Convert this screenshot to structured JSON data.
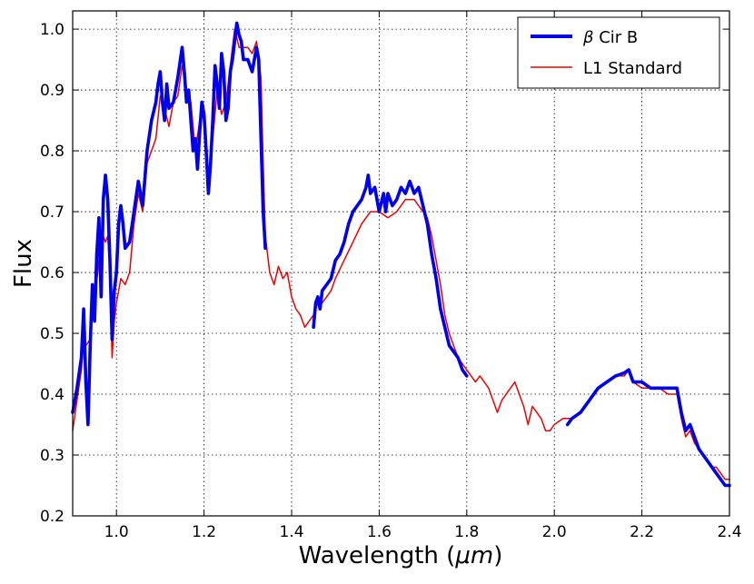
{
  "chart_data": {
    "type": "line",
    "xlabel_text": "Wavelength (",
    "xlabel_symbol": "μm",
    "xlabel_close": ")",
    "ylabel": "Flux",
    "xlim": [
      0.9,
      2.4
    ],
    "ylim": [
      0.2,
      1.03
    ],
    "grid": true,
    "legend_position": "top-right",
    "x_ticks": [
      "1.0",
      "1.2",
      "1.4",
      "1.6",
      "1.8",
      "2.0",
      "2.2",
      "2.4"
    ],
    "y_ticks": [
      "0.2",
      "0.3",
      "0.4",
      "0.5",
      "0.6",
      "0.7",
      "0.8",
      "0.9",
      "1.0"
    ],
    "series": [
      {
        "name_symbol": "β",
        "name_text": "Cir B",
        "color": "#0000ee",
        "linewidth": "thick",
        "segments": [
          [
            [
              0.9,
              0.37
            ],
            [
              0.91,
              0.41
            ],
            [
              0.92,
              0.46
            ],
            [
              0.925,
              0.54
            ],
            [
              0.93,
              0.42
            ],
            [
              0.935,
              0.35
            ],
            [
              0.94,
              0.48
            ],
            [
              0.945,
              0.58
            ],
            [
              0.95,
              0.52
            ],
            [
              0.955,
              0.63
            ],
            [
              0.96,
              0.69
            ],
            [
              0.965,
              0.56
            ],
            [
              0.97,
              0.72
            ],
            [
              0.975,
              0.76
            ],
            [
              0.98,
              0.72
            ],
            [
              0.985,
              0.62
            ],
            [
              0.99,
              0.49
            ],
            [
              0.995,
              0.57
            ],
            [
              1.0,
              0.6
            ],
            [
              1.005,
              0.68
            ],
            [
              1.01,
              0.71
            ],
            [
              1.015,
              0.68
            ],
            [
              1.02,
              0.64
            ],
            [
              1.03,
              0.65
            ],
            [
              1.04,
              0.7
            ],
            [
              1.05,
              0.75
            ],
            [
              1.06,
              0.71
            ],
            [
              1.07,
              0.8
            ],
            [
              1.08,
              0.85
            ],
            [
              1.09,
              0.88
            ],
            [
              1.095,
              0.91
            ],
            [
              1.1,
              0.93
            ],
            [
              1.105,
              0.88
            ],
            [
              1.11,
              0.85
            ],
            [
              1.115,
              0.91
            ],
            [
              1.12,
              0.87
            ],
            [
              1.13,
              0.88
            ],
            [
              1.14,
              0.92
            ],
            [
              1.15,
              0.97
            ],
            [
              1.155,
              0.93
            ],
            [
              1.16,
              0.88
            ],
            [
              1.165,
              0.9
            ],
            [
              1.17,
              0.85
            ],
            [
              1.175,
              0.8
            ],
            [
              1.18,
              0.82
            ],
            [
              1.185,
              0.77
            ],
            [
              1.19,
              0.83
            ],
            [
              1.195,
              0.88
            ],
            [
              1.2,
              0.86
            ],
            [
              1.205,
              0.8
            ],
            [
              1.21,
              0.73
            ],
            [
              1.215,
              0.78
            ],
            [
              1.22,
              0.85
            ],
            [
              1.225,
              0.94
            ],
            [
              1.23,
              0.91
            ],
            [
              1.235,
              0.87
            ],
            [
              1.24,
              0.96
            ],
            [
              1.245,
              0.93
            ],
            [
              1.25,
              0.85
            ],
            [
              1.255,
              0.87
            ],
            [
              1.26,
              0.93
            ],
            [
              1.265,
              0.95
            ],
            [
              1.27,
              0.98
            ],
            [
              1.275,
              1.01
            ],
            [
              1.28,
              0.99
            ],
            [
              1.285,
              0.98
            ],
            [
              1.29,
              0.95
            ],
            [
              1.3,
              0.95
            ],
            [
              1.31,
              0.93
            ],
            [
              1.32,
              0.97
            ],
            [
              1.325,
              0.95
            ],
            [
              1.33,
              0.82
            ],
            [
              1.335,
              0.7
            ],
            [
              1.34,
              0.64
            ]
          ],
          [
            [
              1.45,
              0.51
            ],
            [
              1.455,
              0.55
            ],
            [
              1.46,
              0.56
            ],
            [
              1.465,
              0.54
            ],
            [
              1.47,
              0.57
            ],
            [
              1.48,
              0.58
            ],
            [
              1.49,
              0.59
            ],
            [
              1.5,
              0.62
            ],
            [
              1.51,
              0.63
            ],
            [
              1.52,
              0.65
            ],
            [
              1.53,
              0.68
            ],
            [
              1.54,
              0.7
            ],
            [
              1.55,
              0.71
            ],
            [
              1.56,
              0.72
            ],
            [
              1.57,
              0.74
            ],
            [
              1.575,
              0.76
            ],
            [
              1.58,
              0.73
            ],
            [
              1.59,
              0.74
            ],
            [
              1.6,
              0.7
            ],
            [
              1.61,
              0.73
            ],
            [
              1.615,
              0.7
            ],
            [
              1.62,
              0.73
            ],
            [
              1.63,
              0.71
            ],
            [
              1.64,
              0.72
            ],
            [
              1.65,
              0.74
            ],
            [
              1.66,
              0.73
            ],
            [
              1.67,
              0.75
            ],
            [
              1.68,
              0.73
            ],
            [
              1.69,
              0.74
            ],
            [
              1.7,
              0.71
            ],
            [
              1.71,
              0.68
            ],
            [
              1.72,
              0.63
            ],
            [
              1.73,
              0.59
            ],
            [
              1.74,
              0.54
            ],
            [
              1.75,
              0.51
            ],
            [
              1.76,
              0.48
            ],
            [
              1.77,
              0.47
            ],
            [
              1.78,
              0.46
            ],
            [
              1.79,
              0.44
            ],
            [
              1.8,
              0.43
            ]
          ],
          [
            [
              2.03,
              0.35
            ],
            [
              2.04,
              0.36
            ],
            [
              2.06,
              0.37
            ],
            [
              2.08,
              0.39
            ],
            [
              2.1,
              0.41
            ],
            [
              2.12,
              0.42
            ],
            [
              2.14,
              0.43
            ],
            [
              2.16,
              0.435
            ],
            [
              2.17,
              0.44
            ],
            [
              2.18,
              0.42
            ],
            [
              2.2,
              0.42
            ],
            [
              2.22,
              0.41
            ],
            [
              2.24,
              0.41
            ],
            [
              2.26,
              0.41
            ],
            [
              2.27,
              0.41
            ],
            [
              2.28,
              0.41
            ],
            [
              2.29,
              0.37
            ],
            [
              2.3,
              0.34
            ],
            [
              2.31,
              0.35
            ],
            [
              2.32,
              0.33
            ],
            [
              2.33,
              0.31
            ],
            [
              2.34,
              0.3
            ],
            [
              2.35,
              0.29
            ],
            [
              2.36,
              0.28
            ],
            [
              2.37,
              0.27
            ],
            [
              2.38,
              0.26
            ],
            [
              2.39,
              0.25
            ],
            [
              2.4,
              0.25
            ]
          ]
        ]
      },
      {
        "name": "L1 Standard",
        "color": "#ee0000",
        "linewidth": "thin",
        "segments": [
          [
            [
              0.9,
              0.34
            ],
            [
              0.91,
              0.39
            ],
            [
              0.92,
              0.44
            ],
            [
              0.925,
              0.49
            ],
            [
              0.93,
              0.48
            ],
            [
              0.94,
              0.49
            ],
            [
              0.945,
              0.57
            ],
            [
              0.95,
              0.55
            ],
            [
              0.96,
              0.62
            ],
            [
              0.965,
              0.64
            ],
            [
              0.97,
              0.66
            ],
            [
              0.975,
              0.65
            ],
            [
              0.98,
              0.66
            ],
            [
              0.985,
              0.6
            ],
            [
              0.99,
              0.46
            ],
            [
              0.995,
              0.52
            ],
            [
              1.0,
              0.55
            ],
            [
              1.01,
              0.59
            ],
            [
              1.02,
              0.58
            ],
            [
              1.03,
              0.6
            ],
            [
              1.04,
              0.68
            ],
            [
              1.05,
              0.73
            ],
            [
              1.06,
              0.7
            ],
            [
              1.07,
              0.78
            ],
            [
              1.08,
              0.8
            ],
            [
              1.09,
              0.82
            ],
            [
              1.1,
              0.89
            ],
            [
              1.11,
              0.87
            ],
            [
              1.12,
              0.84
            ],
            [
              1.13,
              0.88
            ],
            [
              1.14,
              0.89
            ],
            [
              1.15,
              0.94
            ],
            [
              1.16,
              0.9
            ],
            [
              1.17,
              0.88
            ],
            [
              1.18,
              0.8
            ],
            [
              1.19,
              0.85
            ],
            [
              1.2,
              0.86
            ],
            [
              1.21,
              0.76
            ],
            [
              1.22,
              0.82
            ],
            [
              1.23,
              0.9
            ],
            [
              1.24,
              0.86
            ],
            [
              1.25,
              0.88
            ],
            [
              1.26,
              0.94
            ],
            [
              1.27,
              1.0
            ],
            [
              1.28,
              0.97
            ],
            [
              1.29,
              0.97
            ],
            [
              1.3,
              0.97
            ],
            [
              1.31,
              0.96
            ],
            [
              1.32,
              0.98
            ],
            [
              1.33,
              0.92
            ],
            [
              1.335,
              0.78
            ],
            [
              1.34,
              0.66
            ],
            [
              1.35,
              0.6
            ],
            [
              1.36,
              0.58
            ],
            [
              1.37,
              0.61
            ],
            [
              1.38,
              0.59
            ],
            [
              1.39,
              0.6
            ],
            [
              1.4,
              0.56
            ],
            [
              1.41,
              0.54
            ],
            [
              1.42,
              0.53
            ],
            [
              1.43,
              0.51
            ],
            [
              1.44,
              0.52
            ],
            [
              1.45,
              0.53
            ],
            [
              1.46,
              0.55
            ],
            [
              1.47,
              0.55
            ],
            [
              1.48,
              0.56
            ],
            [
              1.49,
              0.57
            ],
            [
              1.5,
              0.59
            ],
            [
              1.52,
              0.62
            ],
            [
              1.54,
              0.65
            ],
            [
              1.56,
              0.68
            ],
            [
              1.58,
              0.7
            ],
            [
              1.6,
              0.7
            ],
            [
              1.62,
              0.69
            ],
            [
              1.64,
              0.7
            ],
            [
              1.66,
              0.72
            ],
            [
              1.68,
              0.72
            ],
            [
              1.7,
              0.7
            ],
            [
              1.71,
              0.69
            ],
            [
              1.72,
              0.66
            ],
            [
              1.73,
              0.62
            ],
            [
              1.74,
              0.58
            ],
            [
              1.75,
              0.53
            ],
            [
              1.76,
              0.5
            ],
            [
              1.77,
              0.48
            ],
            [
              1.78,
              0.46
            ],
            [
              1.79,
              0.45
            ],
            [
              1.8,
              0.44
            ],
            [
              1.81,
              0.43
            ],
            [
              1.82,
              0.42
            ],
            [
              1.83,
              0.43
            ],
            [
              1.84,
              0.42
            ],
            [
              1.85,
              0.41
            ],
            [
              1.86,
              0.39
            ],
            [
              1.87,
              0.37
            ],
            [
              1.88,
              0.39
            ],
            [
              1.89,
              0.4
            ],
            [
              1.9,
              0.41
            ],
            [
              1.91,
              0.42
            ],
            [
              1.92,
              0.4
            ],
            [
              1.93,
              0.38
            ],
            [
              1.94,
              0.35
            ],
            [
              1.95,
              0.38
            ],
            [
              1.96,
              0.37
            ],
            [
              1.97,
              0.36
            ],
            [
              1.98,
              0.34
            ],
            [
              1.99,
              0.34
            ],
            [
              2.0,
              0.35
            ],
            [
              2.02,
              0.36
            ],
            [
              2.04,
              0.36
            ],
            [
              2.06,
              0.37
            ],
            [
              2.08,
              0.39
            ],
            [
              2.1,
              0.41
            ],
            [
              2.12,
              0.42
            ],
            [
              2.14,
              0.43
            ],
            [
              2.16,
              0.43
            ],
            [
              2.17,
              0.44
            ],
            [
              2.18,
              0.42
            ],
            [
              2.2,
              0.41
            ],
            [
              2.22,
              0.41
            ],
            [
              2.24,
              0.41
            ],
            [
              2.26,
              0.4
            ],
            [
              2.28,
              0.4
            ],
            [
              2.29,
              0.36
            ],
            [
              2.3,
              0.33
            ],
            [
              2.31,
              0.34
            ],
            [
              2.32,
              0.32
            ],
            [
              2.33,
              0.31
            ],
            [
              2.34,
              0.3
            ],
            [
              2.35,
              0.29
            ],
            [
              2.36,
              0.28
            ],
            [
              2.37,
              0.28
            ],
            [
              2.38,
              0.27
            ],
            [
              2.39,
              0.26
            ],
            [
              2.4,
              0.26
            ]
          ]
        ]
      }
    ]
  }
}
